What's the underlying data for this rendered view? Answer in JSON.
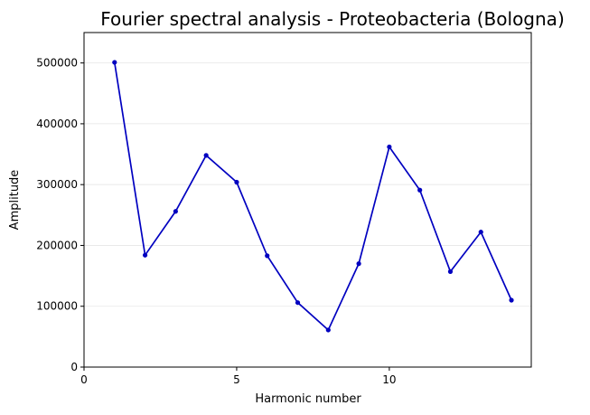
{
  "chart_data": {
    "type": "line",
    "title": "Fourier spectral analysis - Proteobacteria (Bologna)",
    "xlabel": "Harmonic number",
    "ylabel": "Amplitude",
    "xlim": [
      0,
      14.65
    ],
    "ylim": [
      0,
      550000
    ],
    "xticks": [
      0,
      5,
      10
    ],
    "yticks": [
      0,
      100000,
      200000,
      300000,
      400000,
      500000
    ],
    "grid": "y-only",
    "legend": "none",
    "color": "#0000c0",
    "series": [
      {
        "x": [
          1,
          2,
          3,
          4,
          5,
          6,
          7,
          8,
          9,
          10,
          11,
          12,
          13,
          14
        ],
        "values": [
          501000,
          184000,
          256000,
          348000,
          304000,
          183000,
          106000,
          61000,
          170000,
          362000,
          291000,
          157000,
          222000,
          110000
        ]
      }
    ]
  }
}
